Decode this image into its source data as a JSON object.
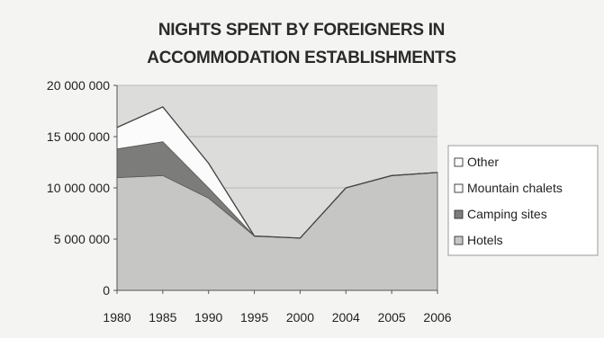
{
  "chart_data": {
    "type": "area",
    "stacked": true,
    "title_lines": [
      "NIGHTS SPENT BY FOREIGNERS IN",
      "ACCOMMODATION ESTABLISHMENTS"
    ],
    "categories": [
      "1980",
      "1985",
      "1990",
      "1995",
      "2000",
      "2004",
      "2005",
      "2006"
    ],
    "series": [
      {
        "name": "Hotels",
        "values": [
          11000000,
          11200000,
          9000000,
          5300000,
          5100000,
          10000000,
          11200000,
          11500000
        ],
        "color": "#c6c6c4"
      },
      {
        "name": "Camping sites",
        "values": [
          2800000,
          3300000,
          1000000,
          0,
          0,
          0,
          0,
          0
        ],
        "color": "#7c7c7a"
      },
      {
        "name": "Mountain chalets",
        "values": [
          2100000,
          3400000,
          2400000,
          0,
          0,
          0,
          0,
          0
        ],
        "color": "#fbfbfb"
      },
      {
        "name": "Other",
        "values": [
          0,
          0,
          0,
          0,
          0,
          0,
          0,
          0
        ],
        "color": "#ffffff"
      }
    ],
    "legend_order": [
      "Other",
      "Mountain chalets",
      "Camping sites",
      "Hotels"
    ],
    "ylim": [
      0,
      20000000
    ],
    "y_ticks": [
      0,
      5000000,
      10000000,
      15000000,
      20000000
    ],
    "y_tick_labels": [
      "0",
      "5 000 000",
      "10 000 000",
      "15 000 000",
      "20 000 000"
    ],
    "plot_background": "#dcdcda",
    "gridlines": true,
    "legend_position": "right"
  }
}
